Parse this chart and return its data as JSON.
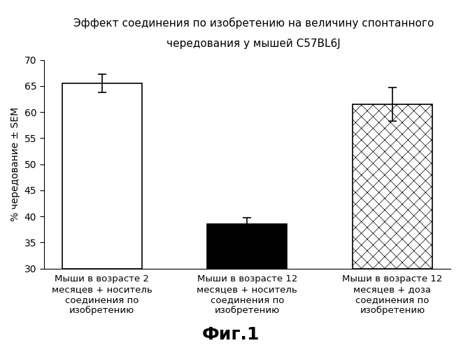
{
  "title_line1": "Эффект соединения по изобретению на величину спонтанного",
  "title_line2": "чередования у мышей С57BL6J",
  "ylabel": "% чередование ± SEM",
  "xlabel_labels": [
    "Мыши в возрасте 2\nмесяцев + носитель\nсоединения по\nизобретению",
    "Мыши в возрасте 12\nмесяцев + носитель\nсоединения по\nизобретению",
    "Мыши в возрасте 12\nмесяцев + доза\nсоединения по\nизобретению"
  ],
  "values": [
    65.5,
    38.5,
    61.5
  ],
  "errors": [
    1.8,
    1.2,
    3.2
  ],
  "ylim": [
    30,
    70
  ],
  "yticks": [
    30,
    35,
    40,
    45,
    50,
    55,
    60,
    65,
    70
  ],
  "bar_colors": [
    "white",
    "black",
    "white"
  ],
  "bar_edgecolors": [
    "black",
    "black",
    "black"
  ],
  "hatch_patterns": [
    "",
    "",
    "////\\\\\\\\////\\\\\\\\"
  ],
  "caption": "Фиг.1",
  "background_color": "#ffffff",
  "bar_width": 0.55,
  "title_fontsize": 11,
  "axis_fontsize": 10,
  "tick_fontsize": 10,
  "caption_fontsize": 18,
  "xlabel_fontsize": 9.5
}
